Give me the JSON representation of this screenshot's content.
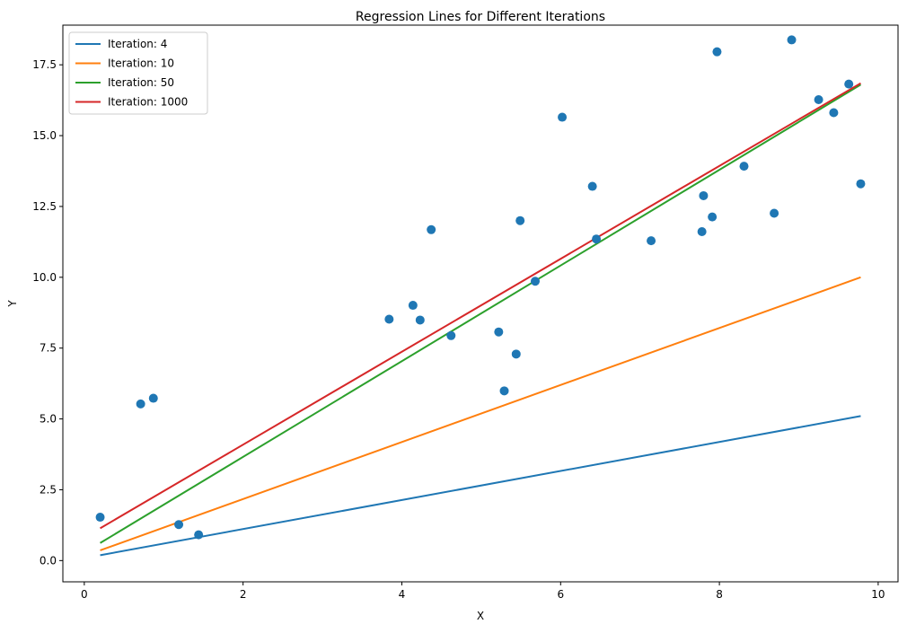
{
  "chart_data": {
    "type": "scatter",
    "title": "Regression Lines for Different Iterations",
    "xlabel": "X",
    "ylabel": "Y",
    "xlim": [
      -0.27,
      10.25
    ],
    "ylim": [
      -0.75,
      18.9
    ],
    "xticks": [
      0,
      2,
      4,
      6,
      8,
      10
    ],
    "xtick_labels": [
      "0",
      "2",
      "4",
      "6",
      "8",
      "10"
    ],
    "yticks": [
      0,
      2.5,
      5,
      7.5,
      10,
      12.5,
      15,
      17.5
    ],
    "ytick_labels": [
      "0.0",
      "2.5",
      "5.0",
      "7.5",
      "10.0",
      "12.5",
      "15.0",
      "17.5"
    ],
    "grid": false,
    "legend_position": "top-left",
    "scatter": {
      "color": "#1f77b4",
      "points": [
        [
          0.2,
          1.53
        ],
        [
          0.71,
          5.53
        ],
        [
          0.87,
          5.73
        ],
        [
          1.19,
          1.27
        ],
        [
          1.44,
          0.91
        ],
        [
          3.84,
          8.52
        ],
        [
          4.14,
          9.01
        ],
        [
          4.23,
          8.49
        ],
        [
          4.37,
          11.68
        ],
        [
          4.62,
          7.94
        ],
        [
          5.22,
          8.07
        ],
        [
          5.29,
          5.99
        ],
        [
          5.44,
          7.29
        ],
        [
          5.49,
          12.0
        ],
        [
          5.68,
          9.86
        ],
        [
          6.02,
          15.65
        ],
        [
          6.4,
          13.21
        ],
        [
          6.45,
          11.35
        ],
        [
          7.14,
          11.29
        ],
        [
          7.78,
          11.61
        ],
        [
          7.8,
          12.88
        ],
        [
          7.91,
          12.13
        ],
        [
          7.97,
          17.96
        ],
        [
          8.31,
          13.92
        ],
        [
          8.69,
          12.26
        ],
        [
          8.91,
          18.38
        ],
        [
          9.25,
          16.27
        ],
        [
          9.44,
          15.81
        ],
        [
          9.63,
          16.82
        ],
        [
          9.78,
          13.3
        ]
      ]
    },
    "series": [
      {
        "name": "Iteration: 4",
        "color": "#1f77b4",
        "x": [
          0.2,
          9.78
        ],
        "y": [
          0.19,
          5.1
        ]
      },
      {
        "name": "Iteration: 10",
        "color": "#ff7f0e",
        "x": [
          0.2,
          9.78
        ],
        "y": [
          0.36,
          10.0
        ]
      },
      {
        "name": "Iteration: 50",
        "color": "#2ca02c",
        "x": [
          0.2,
          9.78
        ],
        "y": [
          0.62,
          16.8
        ]
      },
      {
        "name": "Iteration: 1000",
        "color": "#d62728",
        "x": [
          0.2,
          9.78
        ],
        "y": [
          1.14,
          16.85
        ]
      }
    ]
  }
}
